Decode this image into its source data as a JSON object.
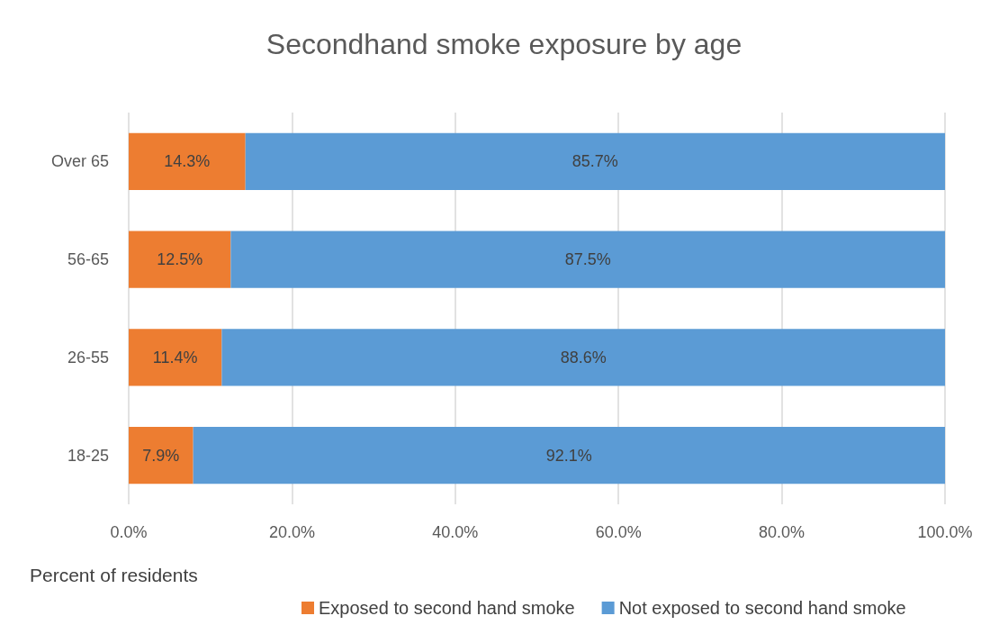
{
  "chart_data": {
    "type": "bar",
    "orientation": "horizontal",
    "stacked": true,
    "title": "Secondhand smoke exposure by age",
    "xlabel": "Percent of residents",
    "categories": [
      "Over 65",
      "56-65",
      "26-55",
      "18-25"
    ],
    "series": [
      {
        "name": "Exposed to second hand smoke",
        "color": "#ed7d31",
        "values": [
          14.3,
          12.5,
          11.4,
          7.9
        ],
        "value_labels": [
          "14.3%",
          "12.5%",
          "11.4%",
          "7.9%"
        ]
      },
      {
        "name": "Not exposed to second hand smoke",
        "color": "#5b9bd5",
        "values": [
          85.7,
          87.5,
          88.6,
          92.1
        ],
        "value_labels": [
          "85.7%",
          "87.5%",
          "88.6%",
          "92.1%"
        ]
      }
    ],
    "xlim": [
      0,
      100
    ],
    "xticks": [
      {
        "value": 0,
        "label": "0.0%"
      },
      {
        "value": 20,
        "label": "20.0%"
      },
      {
        "value": 40,
        "label": "40.0%"
      },
      {
        "value": 60,
        "label": "60.0%"
      },
      {
        "value": 80,
        "label": "80.0%"
      },
      {
        "value": 100,
        "label": "100.0%"
      }
    ],
    "grid": "x",
    "legend": "bottom"
  }
}
